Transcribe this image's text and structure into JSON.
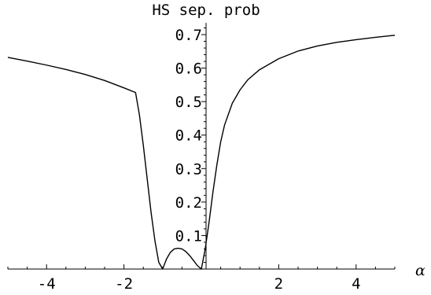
{
  "chart_data": {
    "type": "line",
    "ylabel": "HS sep. prob",
    "xlabel": "α",
    "xlim": [
      -5,
      5
    ],
    "ylim": [
      0,
      0.72
    ],
    "grid": false,
    "x_ticks": [
      -4,
      -2,
      2,
      4
    ],
    "x_tick_labels": [
      "-4",
      "-2",
      "2",
      "4"
    ],
    "y_ticks": [
      0.1,
      0.2,
      0.3,
      0.4,
      0.5,
      0.6,
      0.7
    ],
    "y_tick_labels": [
      "0.1",
      "0.2",
      "0.3",
      "0.4",
      "0.5",
      "0.6",
      "0.7"
    ],
    "series": [
      {
        "x": [
          -5,
          -4.5,
          -4,
          -3.5,
          -3,
          -2.5,
          -2,
          -1.7,
          -1.6,
          -1.5,
          -1.4,
          -1.3,
          -1.2,
          -1.1,
          -1.0,
          -0.9,
          -0.8,
          -0.7,
          -0.6,
          -0.5,
          -0.4,
          -0.3,
          -0.2,
          -0.1,
          0,
          0.1,
          0.2,
          0.3,
          0.4,
          0.5,
          0.6,
          0.8,
          1.0,
          1.2,
          1.5,
          2,
          2.5,
          3,
          3.5,
          4,
          4.5,
          5
        ],
        "y": [
          0.632,
          0.621,
          0.609,
          0.596,
          0.581,
          0.563,
          0.541,
          0.527,
          0.46,
          0.37,
          0.27,
          0.17,
          0.085,
          0.02,
          0.0,
          0.03,
          0.05,
          0.06,
          0.062,
          0.06,
          0.052,
          0.04,
          0.025,
          0.01,
          0.0,
          0.06,
          0.14,
          0.23,
          0.31,
          0.38,
          0.43,
          0.495,
          0.535,
          0.565,
          0.595,
          0.628,
          0.651,
          0.666,
          0.677,
          0.685,
          0.692,
          0.698
        ]
      }
    ]
  }
}
